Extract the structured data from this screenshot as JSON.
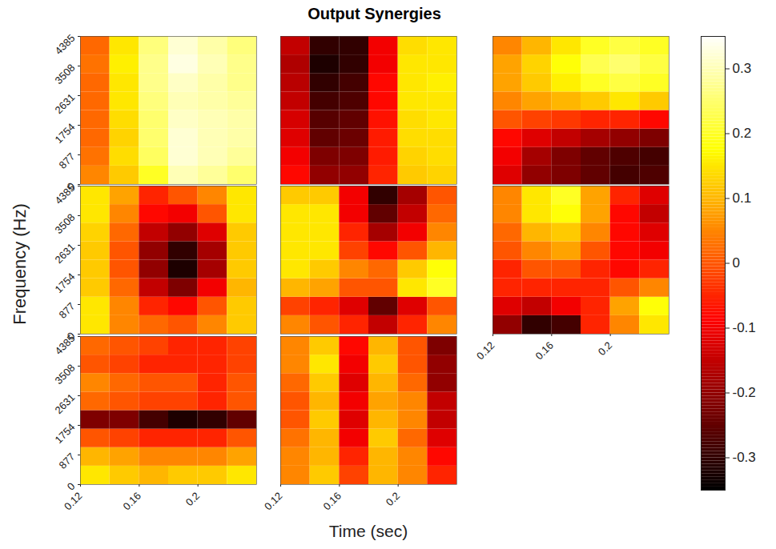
{
  "chart_data": {
    "type": "heatmap",
    "title": "Output Synergies",
    "xlabel": "Time (sec)",
    "ylabel": "Frequency (Hz)",
    "xlim": [
      0.12,
      0.24
    ],
    "ylim": [
      0,
      4385
    ],
    "xticks": [
      0.12,
      0.16,
      0.2
    ],
    "yticks": [
      0,
      877,
      1754,
      2631,
      3508,
      4385
    ],
    "x_edges": [
      0.12,
      0.14,
      0.16,
      0.18,
      0.2,
      0.22,
      0.24
    ],
    "y_edges": [
      0,
      548,
      1096,
      1644,
      2193,
      2741,
      3289,
      3837,
      4385
    ],
    "colorbar": {
      "range": [
        -0.35,
        0.35
      ],
      "ticks": [
        -0.3,
        -0.2,
        -0.1,
        0,
        0.1,
        0.2,
        0.3
      ]
    },
    "panels": [
      {
        "tick_labels": "y",
        "cells": [
          [
            0.05,
            0.12,
            0.2,
            0.3,
            0.28,
            0.25
          ],
          [
            0.03,
            0.14,
            0.24,
            0.32,
            0.3,
            0.28
          ],
          [
            0.02,
            0.13,
            0.25,
            0.32,
            0.3,
            0.29
          ],
          [
            0.02,
            0.14,
            0.25,
            0.31,
            0.3,
            0.29
          ],
          [
            0.02,
            0.15,
            0.26,
            0.3,
            0.29,
            0.28
          ],
          [
            0.02,
            0.15,
            0.27,
            0.31,
            0.29,
            0.27
          ],
          [
            0.03,
            0.16,
            0.27,
            0.33,
            0.3,
            0.27
          ],
          [
            0.02,
            0.15,
            0.26,
            0.32,
            0.29,
            0.26
          ]
        ]
      },
      {
        "tick_labels": false,
        "cells": [
          [
            -0.08,
            -0.2,
            -0.2,
            -0.05,
            0.12,
            0.13
          ],
          [
            -0.1,
            -0.22,
            -0.22,
            -0.06,
            0.13,
            0.14
          ],
          [
            -0.12,
            -0.25,
            -0.24,
            -0.06,
            0.14,
            0.14
          ],
          [
            -0.13,
            -0.26,
            -0.25,
            -0.07,
            0.14,
            0.15
          ],
          [
            -0.15,
            -0.28,
            -0.27,
            -0.08,
            0.15,
            0.15
          ],
          [
            -0.16,
            -0.3,
            -0.28,
            -0.08,
            0.15,
            0.16
          ],
          [
            -0.17,
            -0.32,
            -0.3,
            -0.1,
            0.15,
            0.15
          ],
          [
            -0.15,
            -0.3,
            -0.3,
            -0.1,
            0.14,
            0.15
          ]
        ]
      },
      {
        "tick_labels": false,
        "cells": [
          [
            -0.12,
            -0.2,
            -0.22,
            -0.25,
            -0.28,
            -0.27
          ],
          [
            -0.1,
            -0.18,
            -0.22,
            -0.25,
            -0.27,
            -0.28
          ],
          [
            -0.08,
            -0.12,
            -0.15,
            -0.18,
            -0.2,
            -0.22
          ],
          [
            0.0,
            -0.02,
            -0.03,
            -0.05,
            -0.05,
            -0.08
          ],
          [
            0.05,
            0.08,
            0.1,
            0.12,
            0.15,
            0.12
          ],
          [
            0.08,
            0.12,
            0.16,
            0.2,
            0.22,
            0.2
          ],
          [
            0.08,
            0.13,
            0.18,
            0.23,
            0.25,
            0.22
          ],
          [
            0.05,
            0.1,
            0.15,
            0.2,
            0.22,
            0.2
          ]
        ]
      },
      {
        "tick_labels": "y",
        "cells": [
          [
            0.15,
            0.05,
            0.02,
            0.0,
            0.05,
            0.12
          ],
          [
            0.15,
            0.05,
            -0.05,
            -0.08,
            0.0,
            0.12
          ],
          [
            0.12,
            0.02,
            -0.15,
            -0.22,
            -0.1,
            0.1
          ],
          [
            0.12,
            0.0,
            -0.2,
            -0.32,
            -0.18,
            0.12
          ],
          [
            0.12,
            0.0,
            -0.2,
            -0.3,
            -0.18,
            0.12
          ],
          [
            0.13,
            0.02,
            -0.15,
            -0.2,
            -0.12,
            0.12
          ],
          [
            0.15,
            0.05,
            -0.08,
            -0.1,
            0.0,
            0.15
          ],
          [
            0.15,
            0.08,
            -0.05,
            0.0,
            0.05,
            0.15
          ]
        ]
      },
      {
        "tick_labels": false,
        "cells": [
          [
            0.05,
            0.0,
            -0.05,
            -0.15,
            -0.05,
            0.05
          ],
          [
            -0.02,
            -0.05,
            -0.12,
            -0.25,
            -0.12,
            0.0
          ],
          [
            0.1,
            0.08,
            0.0,
            0.0,
            0.15,
            0.2
          ],
          [
            0.15,
            0.12,
            0.05,
            0.02,
            0.12,
            0.18
          ],
          [
            0.15,
            0.15,
            -0.02,
            -0.08,
            0.0,
            0.1
          ],
          [
            0.15,
            0.15,
            -0.05,
            -0.18,
            -0.1,
            0.05
          ],
          [
            0.15,
            0.15,
            -0.1,
            -0.25,
            -0.15,
            0.02
          ],
          [
            0.12,
            0.12,
            -0.1,
            -0.3,
            -0.18,
            0.0
          ]
        ]
      },
      {
        "tick_labels": "x",
        "cells": [
          [
            -0.2,
            -0.3,
            -0.28,
            -0.05,
            0.05,
            0.15
          ],
          [
            -0.12,
            -0.15,
            -0.1,
            -0.05,
            0.08,
            0.18
          ],
          [
            -0.05,
            -0.05,
            -0.05,
            -0.05,
            0.0,
            0.05
          ],
          [
            -0.05,
            0.0,
            0.0,
            -0.05,
            -0.08,
            -0.05
          ],
          [
            0.0,
            0.05,
            0.08,
            0.0,
            -0.08,
            -0.1
          ],
          [
            0.02,
            0.1,
            0.12,
            0.05,
            -0.08,
            -0.12
          ],
          [
            0.05,
            0.15,
            0.18,
            0.08,
            -0.08,
            -0.15
          ],
          [
            0.05,
            0.15,
            0.2,
            0.08,
            -0.05,
            -0.12
          ]
        ]
      },
      {
        "cells": [
          [
            0.15,
            0.12,
            0.1,
            0.12,
            0.12,
            0.15
          ],
          [
            0.1,
            0.08,
            0.05,
            0.05,
            0.05,
            0.08
          ],
          [
            0.0,
            -0.02,
            -0.05,
            -0.05,
            -0.05,
            0.0
          ],
          [
            -0.22,
            -0.22,
            -0.28,
            -0.32,
            -0.3,
            -0.25
          ],
          [
            0.02,
            0.0,
            -0.02,
            -0.02,
            -0.05,
            0.0
          ],
          [
            0.05,
            0.02,
            0.0,
            0.0,
            -0.05,
            0.0
          ],
          [
            0.0,
            -0.02,
            -0.05,
            -0.05,
            -0.05,
            -0.02
          ],
          [
            0.02,
            0.0,
            -0.02,
            -0.05,
            -0.05,
            -0.02
          ]
        ]
      },
      {
        "tick_labels": "x",
        "cells": [
          [
            0.05,
            0.12,
            -0.02,
            0.1,
            0.05,
            -0.05
          ],
          [
            0.05,
            0.1,
            -0.05,
            0.1,
            0.05,
            -0.08
          ],
          [
            0.03,
            0.1,
            -0.1,
            0.12,
            0.02,
            -0.12
          ],
          [
            0.0,
            0.12,
            -0.12,
            0.1,
            0.05,
            -0.15
          ],
          [
            0.0,
            0.1,
            -0.1,
            0.08,
            0.05,
            -0.15
          ],
          [
            0.02,
            0.12,
            -0.12,
            0.1,
            0.02,
            -0.2
          ],
          [
            0.05,
            0.15,
            -0.1,
            0.12,
            0.0,
            -0.2
          ],
          [
            0.05,
            0.12,
            -0.08,
            0.1,
            0.0,
            -0.22
          ]
        ]
      }
    ]
  }
}
